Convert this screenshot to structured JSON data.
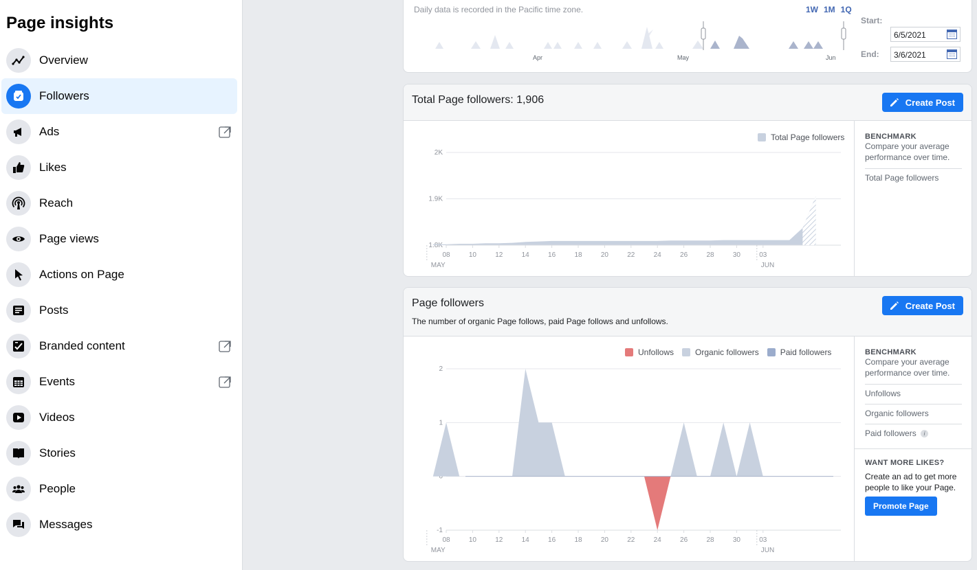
{
  "sidebar": {
    "title": "Page insights",
    "items": [
      {
        "label": "Overview",
        "icon": "overview-chart-icon"
      },
      {
        "label": "Followers",
        "icon": "followers-icon",
        "active": true
      },
      {
        "label": "Ads",
        "icon": "megaphone-icon",
        "external": true
      },
      {
        "label": "Likes",
        "icon": "thumbs-up-icon"
      },
      {
        "label": "Reach",
        "icon": "broadcast-icon"
      },
      {
        "label": "Page views",
        "icon": "eye-icon"
      },
      {
        "label": "Actions on Page",
        "icon": "cursor-icon"
      },
      {
        "label": "Posts",
        "icon": "posts-icon"
      },
      {
        "label": "Branded content",
        "icon": "branded-content-icon",
        "external": true
      },
      {
        "label": "Events",
        "icon": "calendar-icon",
        "external": true
      },
      {
        "label": "Videos",
        "icon": "play-icon"
      },
      {
        "label": "Stories",
        "icon": "book-icon"
      },
      {
        "label": "People",
        "icon": "people-icon"
      },
      {
        "label": "Messages",
        "icon": "chat-bubbles-icon"
      }
    ]
  },
  "date_range": {
    "note": "Daily data is recorded in the Pacific time zone.",
    "ranges": [
      "1W",
      "1M",
      "1Q"
    ],
    "start_label": "Start:",
    "start_value": "6/5/2021",
    "end_label": "End:",
    "end_value": "3/6/2021",
    "month_labels": [
      "Apr",
      "May",
      "Jun"
    ]
  },
  "total_followers": {
    "title": "Total Page followers: 1,906",
    "create_post": "Create Post",
    "legend": "Total Page followers",
    "benchmark_title": "BENCHMARK",
    "benchmark_desc": "Compare your average performance over time.",
    "benchmark_items": [
      "Total Page followers"
    ]
  },
  "page_followers": {
    "title": "Page followers",
    "subtitle": "The number of organic Page follows, paid Page follows and unfollows.",
    "create_post": "Create Post",
    "legend": [
      "Unfollows",
      "Organic followers",
      "Paid followers"
    ],
    "benchmark_title": "BENCHMARK",
    "benchmark_desc": "Compare your average performance over time.",
    "benchmark_items": [
      "Unfollows",
      "Organic followers",
      "Paid followers"
    ],
    "promo_title": "WANT MORE LIKES?",
    "promo_desc": "Create an ad to get more people to like your Page.",
    "promote_button": "Promote Page"
  },
  "colors": {
    "accent": "#1877f2",
    "organic": "#c8d1df",
    "paid": "#9baccc",
    "unfollow": "#e47a7a"
  },
  "chart_data": [
    {
      "type": "area",
      "title": "Total Page followers",
      "categories": [
        "07",
        "08",
        "09",
        "10",
        "11",
        "12",
        "13",
        "14",
        "15",
        "16",
        "17",
        "18",
        "19",
        "20",
        "21",
        "22",
        "23",
        "24",
        "25",
        "26",
        "27",
        "28",
        "29",
        "30",
        "31",
        "01",
        "02",
        "03",
        "04",
        "05"
      ],
      "series": [
        {
          "name": "Total Page followers",
          "values": [
            1802,
            1802,
            1803,
            1803,
            1804,
            1804,
            1805,
            1807,
            1808,
            1809,
            1809,
            1809,
            1809,
            1809,
            1809,
            1809,
            1809,
            1809,
            1810,
            1810,
            1810,
            1810,
            1811,
            1811,
            1811,
            1811,
            1811,
            1811,
            1837,
            1906
          ]
        }
      ],
      "x_tick_labels": [
        "08",
        "10",
        "12",
        "14",
        "16",
        "18",
        "20",
        "22",
        "24",
        "26",
        "28",
        "30",
        "03"
      ],
      "month_labels": [
        "MAY",
        "JUN"
      ],
      "y_ticks": [
        "1.8K",
        "1.9K",
        "2K"
      ],
      "ylim": [
        1800,
        2000
      ]
    },
    {
      "type": "area",
      "title": "Page followers",
      "categories": [
        "07",
        "08",
        "09",
        "10",
        "11",
        "12",
        "13",
        "14",
        "15",
        "16",
        "17",
        "18",
        "19",
        "20",
        "21",
        "22",
        "23",
        "24",
        "25",
        "26",
        "27",
        "28",
        "29",
        "30",
        "31",
        "01",
        "02",
        "03",
        "04",
        "05"
      ],
      "series": [
        {
          "name": "Unfollows",
          "values": [
            0,
            0,
            0,
            0,
            0,
            0,
            0,
            0,
            0,
            0,
            0,
            0,
            0,
            0,
            0,
            0,
            0,
            -1,
            0,
            0,
            0,
            0,
            0,
            0,
            0,
            0,
            0,
            0,
            0,
            0
          ]
        },
        {
          "name": "Organic followers",
          "values": [
            0,
            1,
            0,
            0,
            0,
            0,
            0,
            2,
            1,
            1,
            0,
            0,
            0,
            0,
            0,
            0,
            0,
            0,
            0,
            1,
            0,
            0,
            1,
            0,
            1,
            0,
            0,
            0,
            0,
            0
          ]
        },
        {
          "name": "Paid followers",
          "values": [
            0,
            0,
            0,
            0,
            0,
            0,
            0,
            0,
            0,
            0,
            0,
            0,
            0,
            0,
            0,
            0,
            0,
            0,
            0,
            0,
            0,
            0,
            0,
            0,
            0,
            0,
            0,
            0,
            0,
            0
          ]
        }
      ],
      "x_tick_labels": [
        "08",
        "10",
        "12",
        "14",
        "16",
        "18",
        "20",
        "22",
        "24",
        "26",
        "28",
        "30",
        "03"
      ],
      "month_labels": [
        "MAY",
        "JUN"
      ],
      "y_ticks": [
        "-1",
        "0",
        "1",
        "2"
      ],
      "ylim": [
        -1,
        2
      ]
    }
  ]
}
